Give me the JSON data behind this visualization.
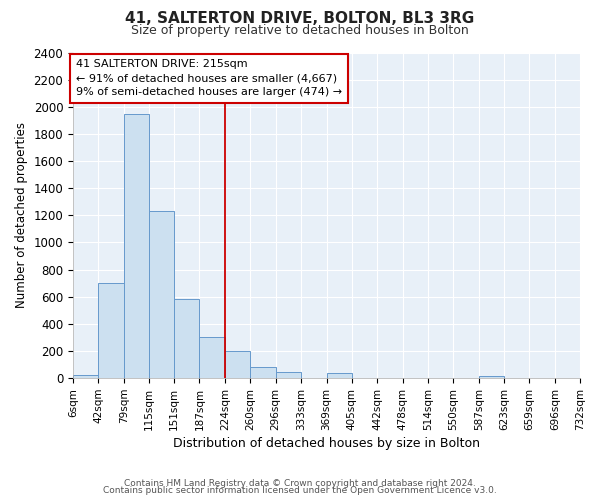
{
  "title": "41, SALTERTON DRIVE, BOLTON, BL3 3RG",
  "subtitle": "Size of property relative to detached houses in Bolton",
  "xlabel": "Distribution of detached houses by size in Bolton",
  "ylabel": "Number of detached properties",
  "bar_color": "#cce0f0",
  "bar_edge_color": "#6699cc",
  "plot_bg_color": "#e8f0f8",
  "fig_bg_color": "#ffffff",
  "grid_color": "#ffffff",
  "bin_edges": [
    6,
    42,
    79,
    115,
    151,
    187,
    224,
    260,
    296,
    333,
    369,
    405,
    442,
    478,
    514,
    550,
    587,
    623,
    659,
    696,
    732
  ],
  "bar_heights": [
    20,
    700,
    1950,
    1230,
    580,
    300,
    200,
    85,
    45,
    0,
    40,
    0,
    0,
    0,
    0,
    0,
    15,
    0,
    0,
    0
  ],
  "red_line_x": 224,
  "ylim": [
    0,
    2400
  ],
  "annotation_line1": "41 SALTERTON DRIVE: 215sqm",
  "annotation_line2": "← 91% of detached houses are smaller (4,667)",
  "annotation_line3": "9% of semi-detached houses are larger (474) →",
  "annotation_box_color": "#ffffff",
  "annotation_box_edge_color": "#cc0000",
  "tick_labels": [
    "6sqm",
    "42sqm",
    "79sqm",
    "115sqm",
    "151sqm",
    "187sqm",
    "224sqm",
    "260sqm",
    "296sqm",
    "333sqm",
    "369sqm",
    "405sqm",
    "442sqm",
    "478sqm",
    "514sqm",
    "550sqm",
    "587sqm",
    "623sqm",
    "659sqm",
    "696sqm",
    "732sqm"
  ],
  "footer_line1": "Contains HM Land Registry data © Crown copyright and database right 2024.",
  "footer_line2": "Contains public sector information licensed under the Open Government Licence v3.0.",
  "yticks": [
    0,
    200,
    400,
    600,
    800,
    1000,
    1200,
    1400,
    1600,
    1800,
    2000,
    2200,
    2400
  ]
}
